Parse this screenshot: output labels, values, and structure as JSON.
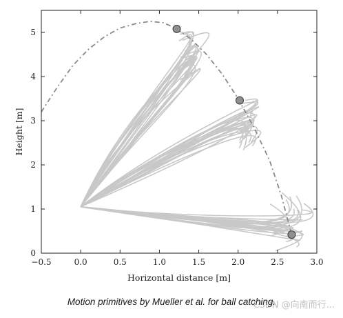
{
  "caption": "Motion primitives by Mueller et al. for ball catching.",
  "watermark": "CSDN @向南而行...",
  "chart_data": {
    "type": "line",
    "xlabel": "Horizontal distance [m]",
    "ylabel": "Height [m]",
    "xlim": [
      -0.5,
      3.0
    ],
    "ylim": [
      0,
      5.5
    ],
    "xticks": [
      -0.5,
      0.0,
      0.5,
      1.0,
      1.5,
      2.0,
      2.5,
      3.0
    ],
    "xtick_labels": [
      "−0.5",
      "0.0",
      "0.5",
      "1.0",
      "1.5",
      "2.0",
      "2.5",
      "3.0"
    ],
    "yticks": [
      0,
      1,
      2,
      3,
      4,
      5
    ],
    "ytick_labels": [
      "0",
      "1",
      "2",
      "3",
      "4",
      "5"
    ],
    "grid": false,
    "colors": {
      "primitives": "#c8c8c8",
      "ball_path": "#8a8a8a",
      "catch_point_fill": "#8f8f8f",
      "catch_point_stroke": "#3a3a3a"
    },
    "ball_trajectory": {
      "style": "dash-dot",
      "x": [
        -0.5,
        -0.3,
        -0.1,
        0.1,
        0.3,
        0.5,
        0.7,
        0.88,
        1.05,
        1.2,
        1.4,
        1.6,
        1.8,
        2.0,
        2.2,
        2.4,
        2.55,
        2.68
      ],
      "y": [
        3.2,
        3.75,
        4.25,
        4.62,
        4.9,
        5.1,
        5.2,
        5.25,
        5.22,
        5.1,
        4.85,
        4.5,
        4.05,
        3.5,
        2.85,
        2.1,
        1.3,
        0.42
      ]
    },
    "catch_points": [
      {
        "x": 1.22,
        "y": 5.08
      },
      {
        "x": 2.02,
        "y": 3.46
      },
      {
        "x": 2.68,
        "y": 0.42
      }
    ],
    "primitive_start": {
      "x": 0.0,
      "y": 1.05
    },
    "primitive_groups": [
      {
        "target": {
          "x": 1.22,
          "y": 5.08
        },
        "count": 24,
        "ends_x": [
          1.25,
          1.4
        ],
        "ends_y": [
          3.9,
          5.1
        ],
        "spread": [
          0.5,
          1.15
        ]
      },
      {
        "target": {
          "x": 2.02,
          "y": 3.46
        },
        "count": 24,
        "ends_x": [
          2.0,
          2.2
        ],
        "ends_y": [
          2.3,
          3.5
        ],
        "spread": [
          0.35,
          0.95
        ]
      },
      {
        "target": {
          "x": 2.68,
          "y": 0.42
        },
        "count": 24,
        "ends_x": [
          2.4,
          2.85
        ],
        "ends_y": [
          0.05,
          1.4
        ],
        "spread": [
          0.2,
          1.1
        ]
      }
    ]
  }
}
